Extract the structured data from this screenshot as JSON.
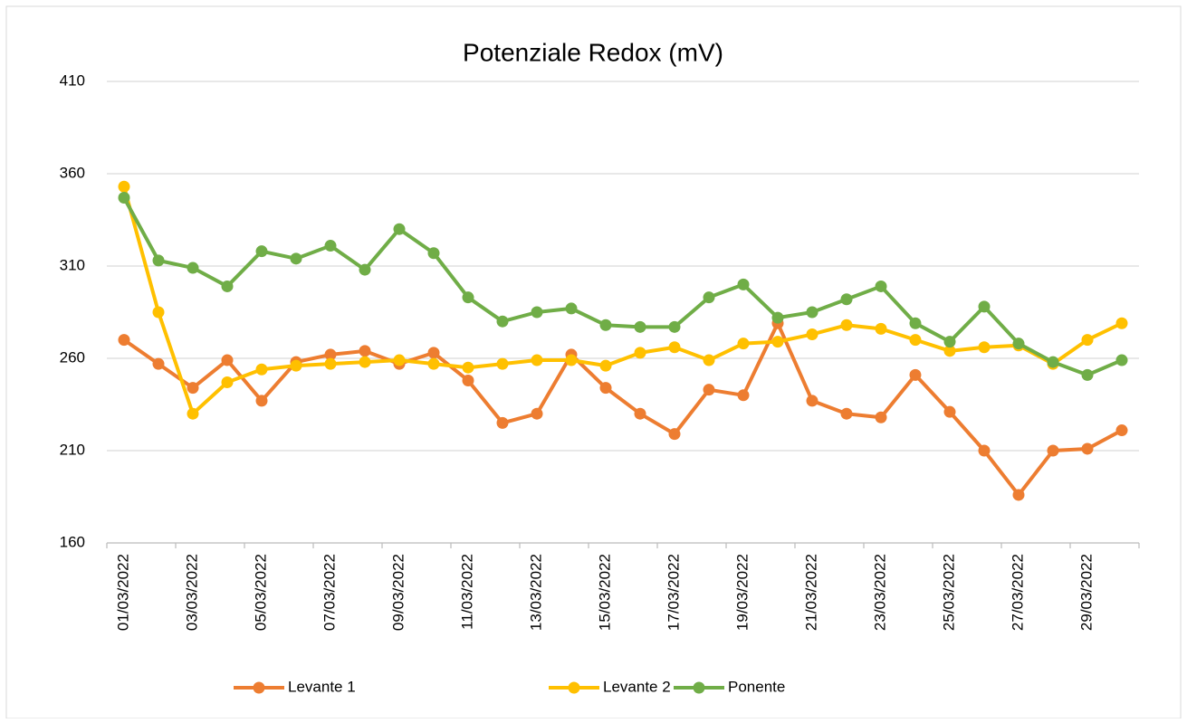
{
  "chart_data": {
    "type": "line",
    "title": "Potenziale Redox (mV)",
    "categories": [
      "01/03/2022",
      null,
      "03/03/2022",
      null,
      "05/03/2022",
      null,
      "07/03/2022",
      null,
      "09/03/2022",
      null,
      "11/03/2022",
      null,
      "13/03/2022",
      null,
      "15/03/2022",
      null,
      "17/03/2022",
      null,
      "19/03/2022",
      null,
      "21/03/2022",
      null,
      "23/03/2022",
      null,
      "25/03/2022",
      null,
      "27/03/2022",
      null,
      "29/03/2022",
      null
    ],
    "series": [
      {
        "name": "Levante 1",
        "color": "#ed7d31",
        "values": [
          270,
          257,
          244,
          259,
          237,
          258,
          262,
          264,
          257,
          263,
          248,
          225,
          230,
          262,
          244,
          230,
          219,
          243,
          240,
          279,
          237,
          230,
          228,
          251,
          231,
          210,
          186,
          210,
          211,
          221
        ]
      },
      {
        "name": "Levante 2",
        "color": "#ffc000",
        "values": [
          353,
          285,
          230,
          247,
          254,
          256,
          257,
          258,
          259,
          257,
          255,
          257,
          259,
          259,
          256,
          263,
          266,
          259,
          268,
          269,
          273,
          278,
          276,
          270,
          264,
          266,
          267,
          257,
          270,
          279
        ]
      },
      {
        "name": "Ponente",
        "color": "#70ad47",
        "values": [
          347,
          313,
          309,
          299,
          318,
          314,
          321,
          308,
          330,
          317,
          293,
          280,
          285,
          287,
          278,
          277,
          277,
          293,
          300,
          282,
          285,
          292,
          299,
          279,
          269,
          288,
          268,
          258,
          251,
          259
        ]
      }
    ],
    "ylim": [
      160,
      410
    ],
    "yticks": [
      160,
      210,
      260,
      310,
      360,
      410
    ],
    "grid": true,
    "legend": "bottom"
  }
}
